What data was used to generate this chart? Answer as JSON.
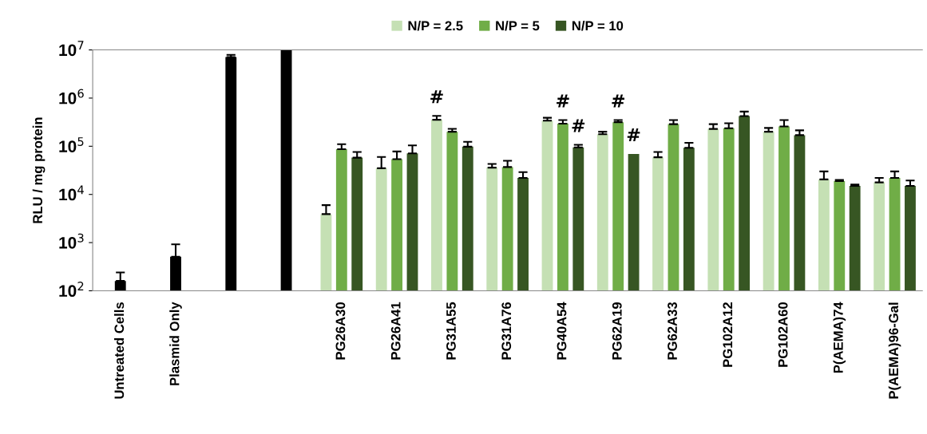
{
  "chart_data": {
    "type": "bar",
    "ylabel": "RLU / mg protein",
    "log": true,
    "categories": [
      "Untreated Cells",
      "Plasmid Only",
      null,
      null,
      "PG26A30",
      "PG26A41",
      "PG31A55",
      "PG31A76",
      "PG40A54",
      "PG62A19",
      "PG62A33",
      "PG102A12",
      "PG102A60",
      "P(AEMA)74",
      "P(AEMA)96-Gal"
    ],
    "series": [
      {
        "color": "#000000",
        "values": [
          160,
          510,
          7100000,
          10000000,
          null,
          null,
          null,
          null,
          null,
          null,
          null,
          null,
          null,
          null,
          null
        ],
        "errors": [
          [
            160,
            240
          ],
          [
            510,
            920
          ],
          [
            7100000,
            7900000
          ],
          null,
          null,
          null,
          null,
          null,
          null,
          null,
          null,
          null,
          null,
          null,
          null
        ]
      },
      {
        "name": "N/P = 2.5",
        "color": "#c5e0b4",
        "values": [
          null,
          null,
          null,
          null,
          3900,
          35000,
          355000,
          36000,
          340000,
          178000,
          59000,
          229000,
          200000,
          20500,
          17800
        ],
        "errors": [
          null,
          null,
          null,
          null,
          [
            3900,
            6000
          ],
          [
            35000,
            60000
          ],
          [
            355000,
            427000
          ],
          [
            36000,
            43000
          ],
          [
            340000,
            390000
          ],
          [
            178000,
            200000
          ],
          [
            59000,
            76000
          ],
          [
            229000,
            288000
          ],
          [
            200000,
            240000
          ],
          [
            20500,
            30000
          ],
          [
            17800,
            22000
          ]
        ],
        "value_labels": [
          null,
          null,
          null,
          null,
          null,
          null,
          "#",
          null,
          null,
          null,
          null,
          null,
          null,
          null,
          null
        ]
      },
      {
        "name": "N/P = 5",
        "color": "#70ad47",
        "values": [
          null,
          null,
          null,
          null,
          87000,
          54000,
          200000,
          37000,
          295000,
          316000,
          288000,
          236000,
          257000,
          19000,
          22000
        ],
        "errors": [
          null,
          null,
          null,
          null,
          [
            87000,
            110000
          ],
          [
            54000,
            78000
          ],
          [
            200000,
            230000
          ],
          [
            37000,
            50000
          ],
          [
            295000,
            350000
          ],
          [
            316000,
            350000
          ],
          [
            288000,
            350000
          ],
          [
            236000,
            300000
          ],
          [
            257000,
            350000
          ],
          [
            19000,
            20000
          ],
          [
            22000,
            30000
          ]
        ],
        "value_labels": [
          null,
          null,
          null,
          null,
          null,
          null,
          null,
          null,
          "#",
          "#",
          null,
          null,
          null,
          null,
          null
        ]
      },
      {
        "name": "N/P = 10",
        "color": "#375623",
        "values": [
          null,
          null,
          null,
          null,
          58000,
          71000,
          98000,
          22000,
          95000,
          69000,
          93000,
          422000,
          170000,
          15000,
          15000
        ],
        "errors": [
          null,
          null,
          null,
          null,
          [
            58000,
            76000
          ],
          [
            71000,
            104000
          ],
          [
            98000,
            124000
          ],
          [
            22000,
            29000
          ],
          [
            95000,
            107000
          ],
          null,
          [
            93000,
            118000
          ],
          [
            422000,
            525000
          ],
          [
            170000,
            214000
          ],
          [
            15000,
            16000
          ],
          [
            15000,
            19500
          ]
        ],
        "value_labels": [
          null,
          null,
          null,
          null,
          null,
          null,
          null,
          null,
          "#",
          "#",
          null,
          null,
          null,
          null,
          null
        ]
      }
    ],
    "ylim": [
      100,
      10000000
    ],
    "yticks": [
      {
        "value": 100,
        "label": "10$^{2}$"
      },
      {
        "value": 1000,
        "label": "10$^{3}$"
      },
      {
        "value": 10000,
        "label": "10$^{4}$"
      },
      {
        "value": 100000,
        "label": "10$^{5}$"
      },
      {
        "value": 1000000,
        "label": "10$^{6}$"
      },
      {
        "value": 10000000,
        "label": "10$^{7}$"
      }
    ],
    "legend": "top",
    "grid": false
  }
}
